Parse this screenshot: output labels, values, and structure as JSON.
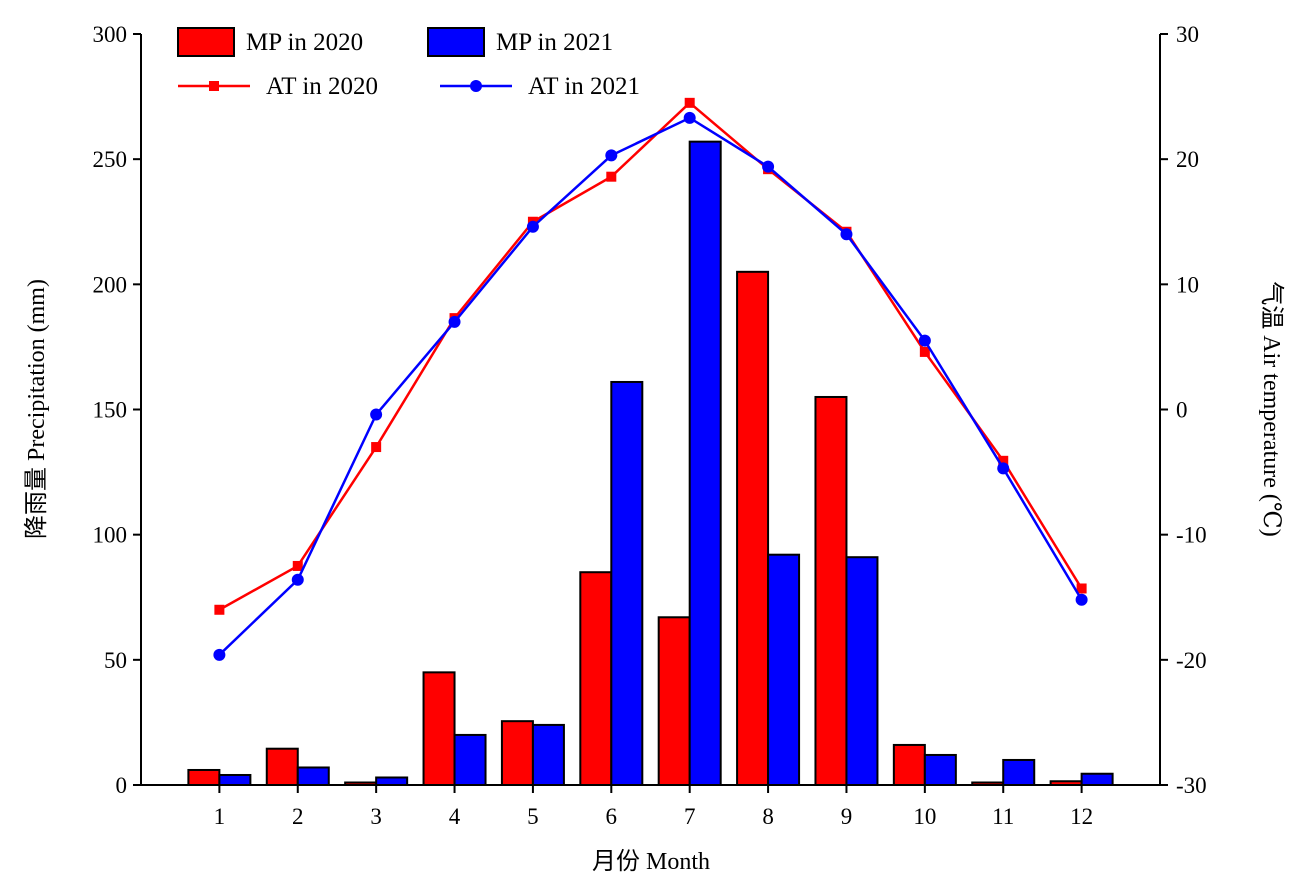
{
  "chart_data": {
    "type": "bar",
    "categories": [
      "1",
      "2",
      "3",
      "4",
      "5",
      "6",
      "7",
      "8",
      "9",
      "10",
      "11",
      "12"
    ],
    "xlabel": "月份 Month",
    "ylabel": "降雨量 Precipitation (mm)",
    "y2label": "气温 Air temperature (℃)",
    "ylim": [
      0,
      300
    ],
    "y2lim": [
      -30,
      30
    ],
    "yticks": [
      0,
      50,
      100,
      150,
      200,
      250,
      300
    ],
    "y2ticks": [
      -30,
      -20,
      -10,
      0,
      10,
      20,
      30
    ],
    "grid": false,
    "legend_position": "top-left",
    "series": [
      {
        "name": "MP in 2020",
        "kind": "bar",
        "axis": "left",
        "color": "#ff0000",
        "values": [
          6,
          14.5,
          1,
          45,
          25.5,
          85,
          67,
          205,
          155,
          16,
          1,
          1.5
        ]
      },
      {
        "name": "MP in 2021",
        "kind": "bar",
        "axis": "left",
        "color": "#0000ff",
        "values": [
          4,
          7,
          3,
          20,
          24,
          161,
          257,
          92,
          91,
          12,
          10,
          4.5
        ]
      },
      {
        "name": "AT in 2020",
        "kind": "line",
        "axis": "right",
        "color": "#ff0000",
        "marker": "square",
        "values": [
          -16,
          -12.5,
          -3,
          7.3,
          15,
          18.6,
          24.5,
          19.2,
          14.2,
          4.6,
          -4.1,
          -14.3
        ]
      },
      {
        "name": "AT in 2021",
        "kind": "line",
        "axis": "right",
        "color": "#0000ff",
        "marker": "circle",
        "values": [
          -19.6,
          -13.6,
          -0.4,
          7,
          14.6,
          20.3,
          23.3,
          19.4,
          14,
          5.5,
          -4.7,
          -15.2
        ]
      }
    ]
  }
}
